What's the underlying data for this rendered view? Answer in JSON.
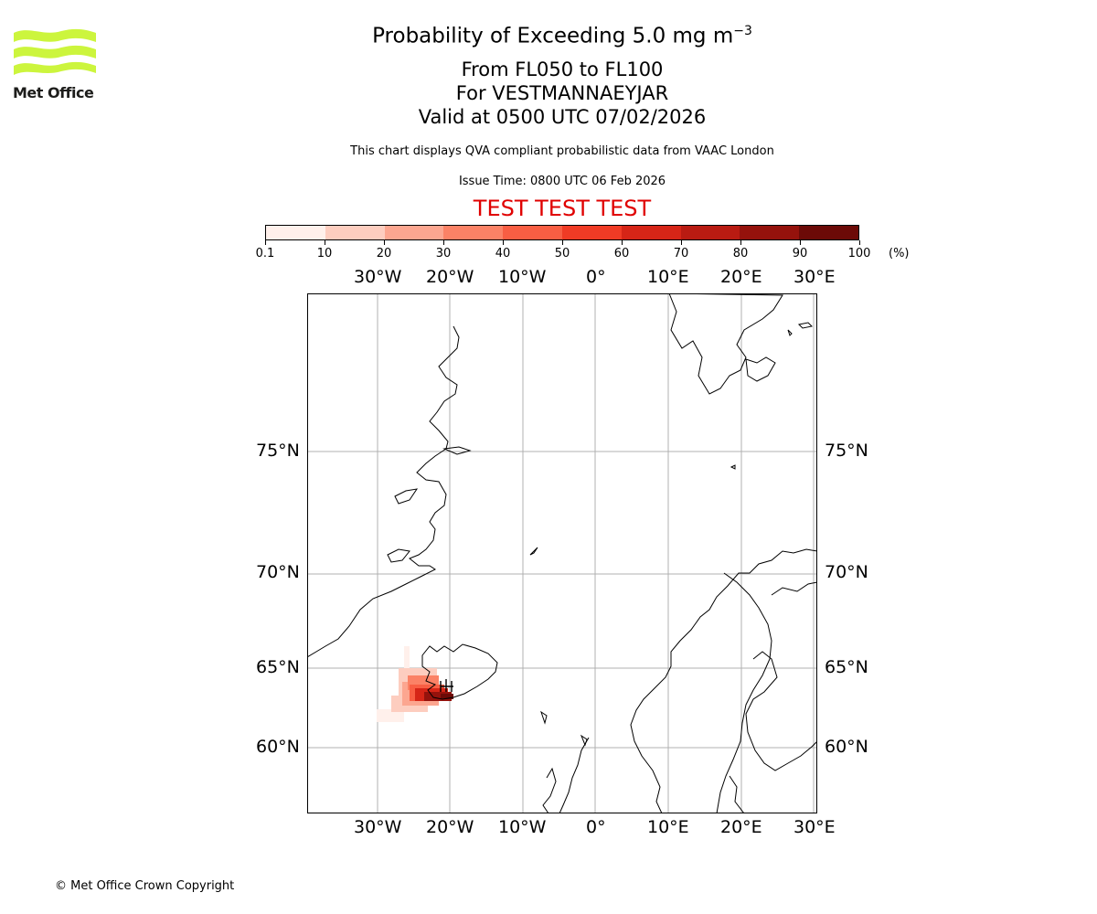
{
  "header": {
    "title_main": "Probability of Exceeding 5.0 mg m",
    "title_sup": "−3",
    "line2": "From FL050 to FL100",
    "line3": "For VESTMANNAEYJAR",
    "line4": "Valid at 0500 UTC 07/02/2026",
    "disclaimer": "This chart displays QVA compliant probabilistic data from VAAC London",
    "issue_time": "Issue Time: 0800 UTC 06 Feb 2026",
    "test_banner": "TEST TEST TEST"
  },
  "logo": {
    "text": "Met Office",
    "color": "#ccf53d",
    "icon": "met-office-waves-icon"
  },
  "colorbar": {
    "labels": [
      "0.1",
      "10",
      "20",
      "30",
      "40",
      "50",
      "60",
      "70",
      "80",
      "90",
      "100"
    ],
    "unit": "(%)",
    "colors": [
      "#fff0eb",
      "#fdcdbf",
      "#fca690",
      "#fb8266",
      "#f85e43",
      "#f03b25",
      "#d62517",
      "#b91b12",
      "#95120c",
      "#6c0a07"
    ]
  },
  "map": {
    "lon_labels": [
      "30°W",
      "20°W",
      "10°W",
      "0°",
      "10°E",
      "20°E",
      "30°E"
    ],
    "lat_labels": [
      "75°N",
      "70°N",
      "65°N",
      "60°N"
    ],
    "grid_color": "#b0b0b0"
  },
  "footer": {
    "copyright": "© Met Office Crown Copyright"
  }
}
